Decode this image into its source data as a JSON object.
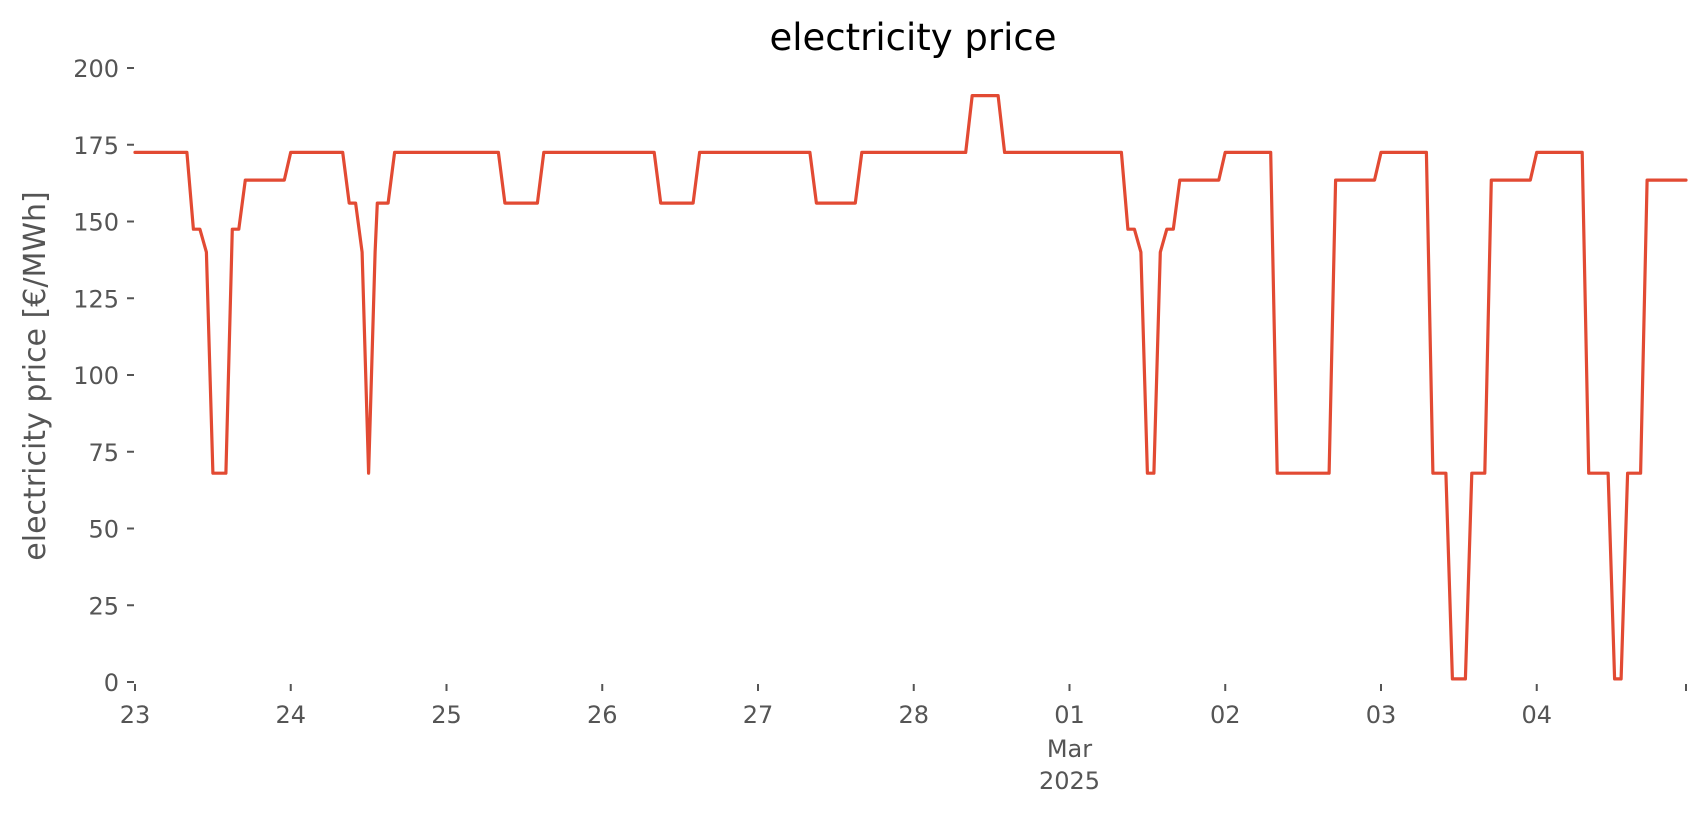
{
  "chart_data": {
    "type": "line",
    "title": "electricity price",
    "xlabel": "",
    "ylabel": "electricity price [€/MWh]",
    "ylim": [
      0,
      200
    ],
    "y_ticks": [
      0,
      25,
      50,
      75,
      100,
      125,
      150,
      175,
      200
    ],
    "x_range": [
      "2025-02-23T00:00",
      "2025-03-04T23:00"
    ],
    "x_ticks": [
      {
        "date": "2025-02-23",
        "label": "23"
      },
      {
        "date": "2025-02-24",
        "label": "24"
      },
      {
        "date": "2025-02-25",
        "label": "25"
      },
      {
        "date": "2025-02-26",
        "label": "26"
      },
      {
        "date": "2025-02-27",
        "label": "27"
      },
      {
        "date": "2025-02-28",
        "label": "28"
      },
      {
        "date": "2025-03-01",
        "label": "01",
        "sublabels": [
          "Mar",
          "2025"
        ]
      },
      {
        "date": "2025-03-02",
        "label": "02"
      },
      {
        "date": "2025-03-03",
        "label": "03"
      },
      {
        "date": "2025-03-04",
        "label": "04"
      }
    ],
    "grid": false,
    "series": [
      {
        "color": "#E24A33",
        "points": [
          [
            "2025-02-23T00:00",
            172.5
          ],
          [
            "2025-02-23T08:00",
            172.5
          ],
          [
            "2025-02-23T09:00",
            147.5
          ],
          [
            "2025-02-23T10:00",
            147.5
          ],
          [
            "2025-02-23T11:00",
            140
          ],
          [
            "2025-02-23T12:00",
            68
          ],
          [
            "2025-02-23T14:00",
            68
          ],
          [
            "2025-02-23T15:00",
            147.5
          ],
          [
            "2025-02-23T16:00",
            147.5
          ],
          [
            "2025-02-23T17:00",
            163.5
          ],
          [
            "2025-02-23T23:00",
            163.5
          ],
          [
            "2025-02-24T00:00",
            172.5
          ],
          [
            "2025-02-24T08:00",
            172.5
          ],
          [
            "2025-02-24T09:00",
            156
          ],
          [
            "2025-02-24T10:00",
            156
          ],
          [
            "2025-02-24T11:00",
            140
          ],
          [
            "2025-02-24T12:00",
            68
          ],
          [
            "2025-02-24T13:00",
            140
          ],
          [
            "2025-02-24T13:20",
            156
          ],
          [
            "2025-02-24T15:00",
            156
          ],
          [
            "2025-02-24T16:00",
            172.5
          ],
          [
            "2025-02-25T08:00",
            172.5
          ],
          [
            "2025-02-25T09:00",
            156
          ],
          [
            "2025-02-25T14:00",
            156
          ],
          [
            "2025-02-25T15:00",
            172.5
          ],
          [
            "2025-02-26T08:00",
            172.5
          ],
          [
            "2025-02-26T09:00",
            156
          ],
          [
            "2025-02-26T14:00",
            156
          ],
          [
            "2025-02-26T15:00",
            172.5
          ],
          [
            "2025-02-27T08:00",
            172.5
          ],
          [
            "2025-02-27T09:00",
            156
          ],
          [
            "2025-02-27T15:00",
            156
          ],
          [
            "2025-02-27T16:00",
            172.5
          ],
          [
            "2025-02-28T08:00",
            172.5
          ],
          [
            "2025-02-28T09:00",
            191
          ],
          [
            "2025-02-28T13:00",
            191
          ],
          [
            "2025-02-28T14:00",
            172.5
          ],
          [
            "2025-03-01T08:00",
            172.5
          ],
          [
            "2025-03-01T09:00",
            147.5
          ],
          [
            "2025-03-01T10:00",
            147.5
          ],
          [
            "2025-03-01T11:00",
            140
          ],
          [
            "2025-03-01T12:00",
            68
          ],
          [
            "2025-03-01T13:00",
            68
          ],
          [
            "2025-03-01T14:00",
            140
          ],
          [
            "2025-03-01T15:00",
            147.5
          ],
          [
            "2025-03-01T16:00",
            147.5
          ],
          [
            "2025-03-01T17:00",
            163.5
          ],
          [
            "2025-03-01T23:00",
            163.5
          ],
          [
            "2025-03-02T00:00",
            172.5
          ],
          [
            "2025-03-02T07:00",
            172.5
          ],
          [
            "2025-03-02T08:00",
            68
          ],
          [
            "2025-03-02T16:00",
            68
          ],
          [
            "2025-03-02T17:00",
            163.5
          ],
          [
            "2025-03-02T23:00",
            163.5
          ],
          [
            "2025-03-03T00:00",
            172.5
          ],
          [
            "2025-03-03T07:00",
            172.5
          ],
          [
            "2025-03-03T08:00",
            68
          ],
          [
            "2025-03-03T10:00",
            68
          ],
          [
            "2025-03-03T11:00",
            1
          ],
          [
            "2025-03-03T13:00",
            1
          ],
          [
            "2025-03-03T14:00",
            68
          ],
          [
            "2025-03-03T16:00",
            68
          ],
          [
            "2025-03-03T17:00",
            163.5
          ],
          [
            "2025-03-03T23:00",
            163.5
          ],
          [
            "2025-03-04T00:00",
            172.5
          ],
          [
            "2025-03-04T07:00",
            172.5
          ],
          [
            "2025-03-04T08:00",
            68
          ],
          [
            "2025-03-04T11:00",
            68
          ],
          [
            "2025-03-04T12:00",
            1
          ],
          [
            "2025-03-04T13:00",
            1
          ],
          [
            "2025-03-04T14:00",
            68
          ],
          [
            "2025-03-04T16:00",
            68
          ],
          [
            "2025-03-04T17:00",
            163.5
          ],
          [
            "2025-03-04T23:00",
            163.5
          ]
        ]
      }
    ]
  }
}
